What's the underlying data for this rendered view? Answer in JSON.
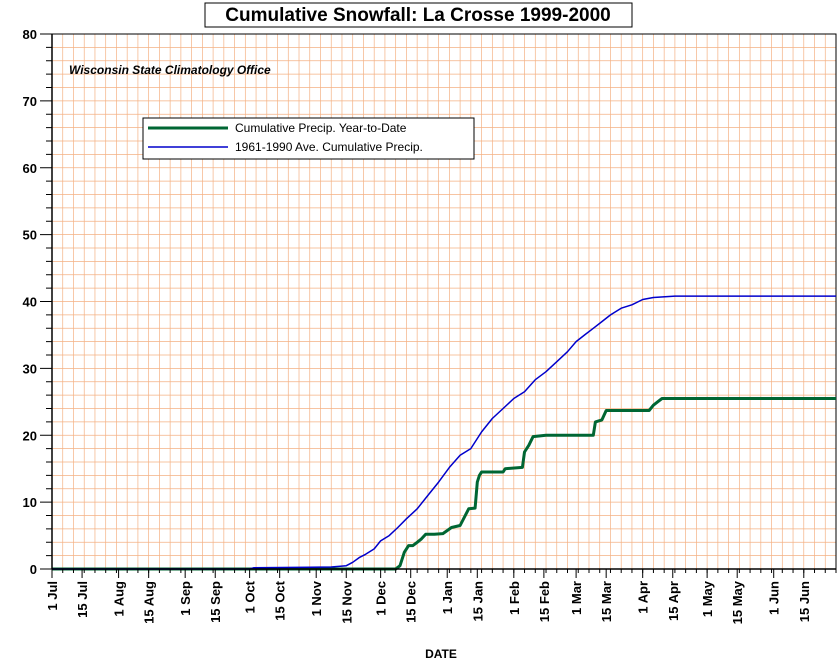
{
  "chart_data": {
    "type": "line",
    "title": "Cumulative Snowfall: La Crosse 1999-2000",
    "source_note": "Wisconsin State Climatology Office",
    "xlabel": "DATE",
    "ylabel": "",
    "ylim": [
      0,
      80
    ],
    "y_ticks": [
      0,
      10,
      20,
      30,
      40,
      50,
      60,
      70,
      80
    ],
    "x_tick_labels": [
      "1 Jul",
      "15 Jul",
      "1 Aug",
      "15 Aug",
      "1 Sep",
      "15 Sep",
      "1 Oct",
      "15 Oct",
      "1 Nov",
      "15 Nov",
      "1 Dec",
      "15 Dec",
      "1 Jan",
      "15 Jan",
      "1 Feb",
      "15 Feb",
      "1 Mar",
      "15 Mar",
      "1 Apr",
      "15 Apr",
      "1 May",
      "15 May",
      "1 Jun",
      "15 Jun"
    ],
    "x_ticks_day": [
      0,
      14,
      31,
      45,
      62,
      76,
      92,
      106,
      123,
      137,
      153,
      167,
      184,
      198,
      215,
      229,
      244,
      258,
      275,
      289,
      305,
      319,
      336,
      350
    ],
    "x_range_days": [
      0,
      365
    ],
    "grid": true,
    "legend_position": "upper-left",
    "colors": {
      "background_grid": "#f4b183",
      "ytd": "#006633",
      "avg": "#0000cc",
      "axis": "#000000"
    },
    "series": [
      {
        "name": "Cumulative Precip. Year-to-Date",
        "color": "#006633",
        "points": [
          [
            0,
            0
          ],
          [
            160,
            0
          ],
          [
            162,
            0.5
          ],
          [
            164,
            2.5
          ],
          [
            166,
            3.5
          ],
          [
            168,
            3.5
          ],
          [
            170,
            4
          ],
          [
            172,
            4.5
          ],
          [
            174,
            5.2
          ],
          [
            178,
            5.2
          ],
          [
            182,
            5.3
          ],
          [
            186,
            6.2
          ],
          [
            190,
            6.5
          ],
          [
            194,
            9
          ],
          [
            197,
            9.1
          ],
          [
            198,
            13
          ],
          [
            199,
            14
          ],
          [
            200,
            14.5
          ],
          [
            210,
            14.5
          ],
          [
            211,
            15
          ],
          [
            219,
            15.2
          ],
          [
            220,
            17.5
          ],
          [
            222,
            18.5
          ],
          [
            224,
            19.8
          ],
          [
            230,
            20
          ],
          [
            240,
            20
          ],
          [
            252,
            20
          ],
          [
            253,
            22
          ],
          [
            256,
            22.3
          ],
          [
            258,
            23.7
          ],
          [
            278,
            23.7
          ],
          [
            280,
            24.5
          ],
          [
            282,
            25
          ],
          [
            284,
            25.5
          ],
          [
            365,
            25.5
          ]
        ]
      },
      {
        "name": "1961-1990 Ave. Cumulative Precip.",
        "color": "#0000cc",
        "points": [
          [
            0,
            0
          ],
          [
            92,
            0
          ],
          [
            94,
            0.2
          ],
          [
            120,
            0.25
          ],
          [
            130,
            0.3
          ],
          [
            137,
            0.5
          ],
          [
            140,
            1
          ],
          [
            143,
            1.7
          ],
          [
            146,
            2.2
          ],
          [
            150,
            3
          ],
          [
            153,
            4.2
          ],
          [
            157,
            5
          ],
          [
            161,
            6.2
          ],
          [
            165,
            7.5
          ],
          [
            170,
            9
          ],
          [
            175,
            11
          ],
          [
            180,
            13
          ],
          [
            185,
            15.2
          ],
          [
            190,
            17
          ],
          [
            195,
            18
          ],
          [
            200,
            20.5
          ],
          [
            205,
            22.5
          ],
          [
            210,
            24
          ],
          [
            215,
            25.5
          ],
          [
            220,
            26.5
          ],
          [
            225,
            28.3
          ],
          [
            230,
            29.5
          ],
          [
            235,
            31
          ],
          [
            240,
            32.5
          ],
          [
            244,
            34
          ],
          [
            248,
            35
          ],
          [
            252,
            36
          ],
          [
            256,
            37
          ],
          [
            260,
            38
          ],
          [
            265,
            39
          ],
          [
            270,
            39.5
          ],
          [
            275,
            40.3
          ],
          [
            280,
            40.6
          ],
          [
            290,
            40.8
          ],
          [
            365,
            40.8
          ]
        ]
      }
    ]
  }
}
